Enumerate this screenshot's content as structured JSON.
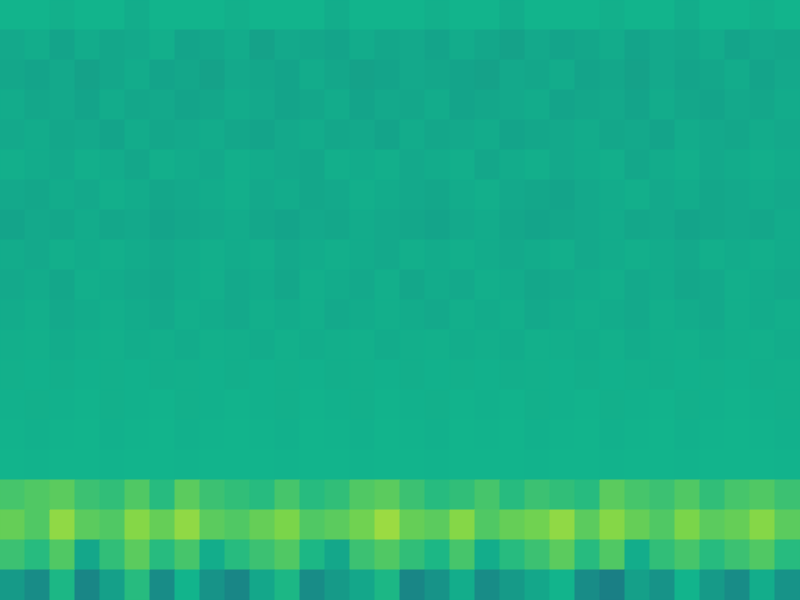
{
  "chart_data": {
    "type": "heatmap",
    "tick_labels": false,
    "xlim": [
      0,
      32
    ],
    "ylim": [
      0,
      20
    ],
    "zlim": [
      -1,
      1
    ],
    "cells": [
      [
        0,
        0,
        -0.03,
        0,
        0,
        -0.05,
        0,
        0,
        0,
        -0.03,
        0,
        0,
        0,
        -0.05,
        0,
        0,
        0,
        -0.03,
        0,
        0,
        -0.05,
        0,
        0,
        0,
        -0.03,
        0,
        0,
        -0.05,
        0,
        0,
        -0.03,
        0
      ],
      [
        -0.08,
        -0.05,
        -0.12,
        -0.06,
        -0.1,
        -0.08,
        -0.04,
        -0.12,
        -0.1,
        -0.06,
        -0.14,
        -0.08,
        -0.1,
        -0.12,
        -0.06,
        -0.1,
        -0.08,
        -0.12,
        -0.06,
        -0.1,
        -0.14,
        -0.08,
        -0.12,
        -0.1,
        -0.06,
        -0.12,
        -0.08,
        -0.1,
        -0.06,
        -0.12,
        -0.08,
        -0.1
      ],
      [
        -0.1,
        -0.12,
        -0.08,
        -0.14,
        -0.1,
        -0.06,
        -0.12,
        -0.1,
        -0.14,
        -0.08,
        -0.1,
        -0.12,
        -0.06,
        -0.1,
        -0.14,
        -0.12,
        -0.08,
        -0.1,
        -0.12,
        -0.14,
        -0.08,
        -0.1,
        -0.06,
        -0.12,
        -0.1,
        -0.14,
        -0.08,
        -0.12,
        -0.1,
        -0.06,
        -0.12,
        -0.08
      ],
      [
        -0.06,
        -0.1,
        -0.08,
        -0.12,
        -0.06,
        -0.1,
        -0.08,
        -0.12,
        -0.1,
        -0.06,
        -0.08,
        -0.12,
        -0.1,
        -0.06,
        -0.12,
        -0.08,
        -0.1,
        -0.06,
        -0.12,
        -0.1,
        -0.08,
        -0.06,
        -0.12,
        -0.1,
        -0.08,
        -0.12,
        -0.06,
        -0.1,
        -0.12,
        -0.08,
        -0.1,
        -0.06
      ],
      [
        -0.08,
        -0.06,
        -0.1,
        -0.08,
        -0.12,
        -0.06,
        -0.1,
        -0.08,
        -0.06,
        -0.1,
        -0.12,
        -0.08,
        -0.06,
        -0.1,
        -0.08,
        -0.12,
        -0.06,
        -0.1,
        -0.08,
        -0.06,
        -0.12,
        -0.1,
        -0.08,
        -0.06,
        -0.1,
        -0.08,
        -0.12,
        -0.06,
        -0.08,
        -0.1,
        -0.06,
        -0.08
      ],
      [
        -0.04,
        -0.06,
        -0.08,
        -0.04,
        -0.06,
        -0.1,
        -0.04,
        -0.06,
        -0.08,
        -0.04,
        -0.06,
        -0.08,
        -0.1,
        -0.04,
        -0.06,
        -0.04,
        -0.08,
        -0.06,
        -0.04,
        -0.1,
        -0.06,
        -0.04,
        -0.08,
        -0.06,
        -0.04,
        -0.1,
        -0.06,
        -0.04,
        -0.08,
        -0.06,
        -0.04,
        -0.06
      ],
      [
        -0.08,
        -0.1,
        -0.06,
        -0.08,
        -0.04,
        -0.06,
        -0.1,
        -0.08,
        -0.06,
        -0.04,
        -0.08,
        -0.06,
        -0.1,
        -0.08,
        -0.04,
        -0.06,
        -0.08,
        -0.1,
        -0.06,
        -0.04,
        -0.08,
        -0.1,
        -0.12,
        -0.08,
        -0.06,
        -0.04,
        -0.08,
        -0.06,
        -0.1,
        -0.08,
        -0.06,
        -0.08
      ],
      [
        -0.12,
        -0.08,
        -0.1,
        -0.06,
        -0.1,
        -0.08,
        -0.12,
        -0.1,
        -0.08,
        -0.06,
        -0.1,
        -0.12,
        -0.08,
        -0.1,
        -0.06,
        -0.08,
        -0.1,
        -0.12,
        -0.08,
        -0.06,
        -0.1,
        -0.12,
        -0.1,
        -0.08,
        -0.06,
        -0.1,
        -0.08,
        -0.12,
        -0.1,
        -0.08,
        -0.1,
        -0.06
      ],
      [
        -0.06,
        -0.08,
        -0.04,
        -0.06,
        -0.04,
        -0.06,
        -0.08,
        -0.06,
        -0.04,
        -0.06,
        -0.04,
        -0.08,
        -0.06,
        -0.04,
        -0.06,
        -0.08,
        -0.04,
        -0.06,
        -0.04,
        -0.06,
        -0.08,
        -0.06,
        -0.04,
        -0.08,
        -0.06,
        -0.04,
        -0.06,
        -0.08,
        -0.04,
        -0.06,
        -0.04,
        -0.06
      ],
      [
        -0.08,
        -0.06,
        -0.1,
        -0.04,
        -0.06,
        -0.08,
        -0.1,
        -0.06,
        -0.04,
        -0.08,
        -0.06,
        -0.1,
        -0.04,
        -0.06,
        -0.08,
        -0.04,
        -0.1,
        -0.06,
        -0.08,
        -0.04,
        -0.06,
        -0.1,
        -0.08,
        -0.06,
        -0.04,
        -0.08,
        -0.06,
        -0.1,
        -0.08,
        -0.04,
        -0.06,
        -0.08
      ],
      [
        -0.06,
        -0.04,
        -0.08,
        -0.06,
        -0.04,
        -0.06,
        -0.08,
        -0.04,
        -0.06,
        -0.08,
        -0.04,
        -0.06,
        -0.04,
        -0.08,
        -0.06,
        -0.04,
        -0.06,
        -0.08,
        -0.04,
        -0.06,
        -0.04,
        -0.08,
        -0.06,
        -0.04,
        -0.06,
        -0.08,
        -0.04,
        -0.06,
        -0.08,
        -0.04,
        -0.06,
        -0.04
      ],
      [
        -0.04,
        -0.03,
        -0.06,
        -0.04,
        -0.03,
        -0.05,
        -0.04,
        -0.06,
        -0.03,
        -0.04,
        -0.06,
        -0.03,
        -0.05,
        -0.04,
        -0.03,
        -0.06,
        -0.04,
        -0.03,
        -0.05,
        -0.04,
        -0.06,
        -0.03,
        -0.04,
        -0.05,
        -0.03,
        -0.06,
        -0.04,
        -0.03,
        -0.05,
        -0.04,
        -0.03,
        -0.05
      ],
      [
        -0.03,
        -0.02,
        -0.04,
        -0.02,
        -0.03,
        -0.02,
        -0.04,
        -0.03,
        -0.02,
        -0.04,
        -0.02,
        -0.03,
        -0.02,
        -0.04,
        -0.03,
        -0.02,
        -0.04,
        -0.02,
        -0.03,
        -0.02,
        -0.04,
        -0.03,
        -0.02,
        -0.04,
        -0.02,
        -0.03,
        -0.04,
        -0.02,
        -0.03,
        -0.02,
        -0.04,
        -0.03
      ],
      [
        -0.02,
        -0.03,
        -0.02,
        -0.01,
        -0.03,
        -0.02,
        -0.01,
        -0.03,
        -0.02,
        -0.01,
        -0.02,
        -0.03,
        -0.01,
        -0.02,
        -0.03,
        -0.01,
        -0.02,
        -0.03,
        -0.01,
        -0.02,
        -0.01,
        -0.03,
        -0.02,
        -0.01,
        -0.03,
        -0.02,
        -0.01,
        -0.03,
        -0.02,
        -0.01,
        -0.02,
        -0.03
      ],
      [
        -0.01,
        -0.02,
        -0.01,
        0,
        -0.02,
        -0.01,
        0,
        -0.02,
        -0.01,
        0,
        -0.01,
        -0.02,
        0,
        -0.01,
        -0.02,
        0,
        -0.01,
        -0.02,
        0,
        -0.01,
        0,
        -0.02,
        -0.01,
        0,
        -0.02,
        -0.01,
        0,
        -0.02,
        -0.01,
        0,
        -0.01,
        -0.02
      ],
      [
        0,
        -0.01,
        0,
        0,
        -0.01,
        0,
        0,
        -0.01,
        0,
        0,
        0,
        -0.01,
        0,
        0,
        -0.01,
        0,
        0,
        -0.01,
        0,
        0,
        0,
        -0.01,
        0,
        0,
        -0.01,
        0,
        0,
        -0.01,
        0,
        0,
        0,
        -0.01
      ],
      [
        0.25,
        0.3,
        0.35,
        0.2,
        0.15,
        0.3,
        0.1,
        0.35,
        0.2,
        0.15,
        0.1,
        0.25,
        0.1,
        0.15,
        0.3,
        0.35,
        0.2,
        0.1,
        0.15,
        0.25,
        0.1,
        0.2,
        0.15,
        0.1,
        0.35,
        0.25,
        0.2,
        0.3,
        0.15,
        0.25,
        0.3,
        0.2
      ],
      [
        0.4,
        0.3,
        0.6,
        0.35,
        0.3,
        0.55,
        0.4,
        0.6,
        0.35,
        0.3,
        0.4,
        0.5,
        0.3,
        0.35,
        0.45,
        0.65,
        0.4,
        0.35,
        0.55,
        0.3,
        0.4,
        0.45,
        0.6,
        0.35,
        0.55,
        0.4,
        0.3,
        0.5,
        0.35,
        0.4,
        0.55,
        0.35
      ],
      [
        0.2,
        0.1,
        0.3,
        -0.1,
        0.15,
        0.35,
        0.1,
        0.25,
        -0.05,
        0.1,
        0.2,
        0.3,
        0.05,
        -0.1,
        0.2,
        0.3,
        0.15,
        0.05,
        0.25,
        -0.05,
        0.1,
        0.2,
        0.35,
        0.1,
        0.3,
        -0.05,
        0.15,
        0.25,
        0.1,
        0.2,
        0.3,
        0.1
      ],
      [
        -0.2,
        -0.3,
        0.05,
        -0.35,
        -0.15,
        0.1,
        -0.3,
        0,
        -0.25,
        -0.35,
        -0.1,
        0.05,
        -0.3,
        -0.2,
        -0.1,
        0.05,
        -0.35,
        -0.25,
        -0.05,
        -0.3,
        -0.2,
        -0.1,
        0,
        -0.3,
        -0.4,
        -0.15,
        -0.25,
        0,
        -0.2,
        -0.3,
        -0.05,
        -0.25
      ]
    ]
  }
}
